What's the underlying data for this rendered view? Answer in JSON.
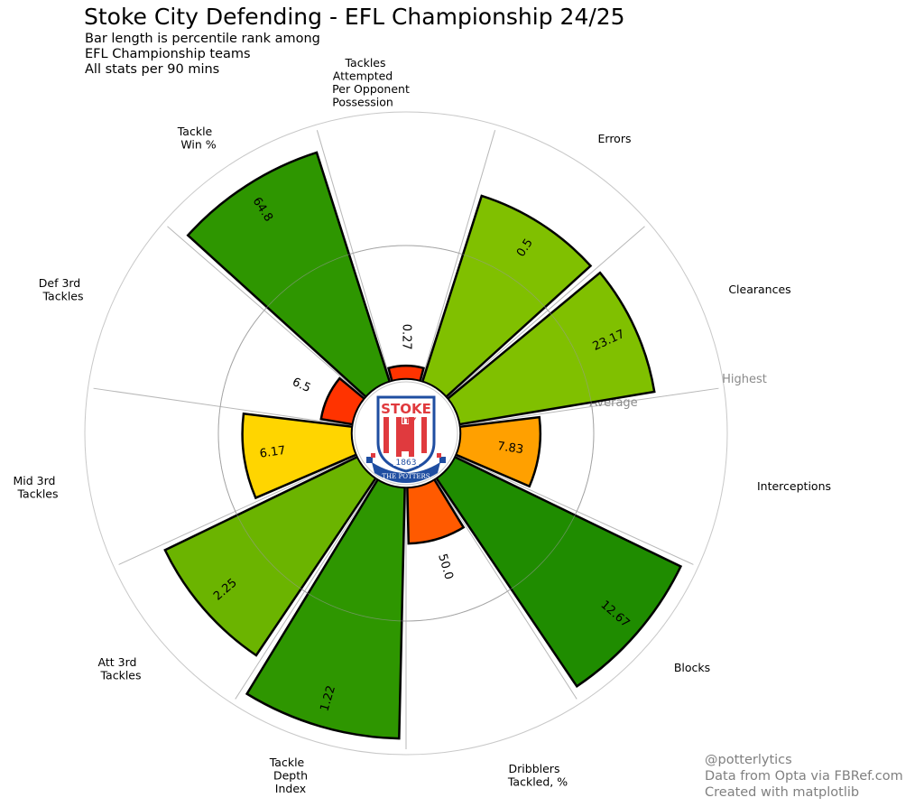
{
  "chart_data": {
    "type": "polar-bar",
    "title": "Stoke City Defending - EFL Championship 24/25",
    "subtitle": [
      "Bar length is percentile rank among",
      "EFL Championship teams",
      "All stats per 90 mins"
    ],
    "radial_axis": {
      "range": [
        0,
        100
      ],
      "unit": "percentile",
      "grid_labels": [
        {
          "value": 50,
          "label": "Average"
        },
        {
          "value": 100,
          "label": "Highest"
        }
      ]
    },
    "categories": [
      {
        "label": "Tackles\nAttempted\nPer Opponent\nPossession",
        "value_label": "0.27",
        "percentile": 5,
        "color": "#ff3300"
      },
      {
        "label": "Errors",
        "value_label": "0.5",
        "percentile": 73,
        "color": "#80c000"
      },
      {
        "label": "Clearances",
        "value_label": "23.17",
        "percentile": 74,
        "color": "#80c000"
      },
      {
        "label": "Interceptions",
        "value_label": "7.83",
        "percentile": 30,
        "color": "#ffa000"
      },
      {
        "label": "Blocks",
        "value_label": "12.67",
        "percentile": 94,
        "color": "#1f8c00"
      },
      {
        "label": "Dribblers\nTackled, %",
        "value_label": "50.0",
        "percentile": 21,
        "color": "#ff5a00"
      },
      {
        "label": "Tackle\nDepth\nIndex",
        "value_label": "1.22",
        "percentile": 94,
        "color": "#2e9600"
      },
      {
        "label": "Att 3rd\nTackles",
        "value_label": "2.25",
        "percentile": 80,
        "color": "#6bb400"
      },
      {
        "label": "Mid 3rd\nTackles",
        "value_label": "6.17",
        "percentile": 41,
        "color": "#ffd500"
      },
      {
        "label": "Def 3rd\nTackles",
        "value_label": "6.5",
        "percentile": 12,
        "color": "#ff3300"
      },
      {
        "label": "Tackle\nWin %",
        "value_label": "64.8",
        "percentile": 90,
        "color": "#2e9600"
      }
    ]
  },
  "logo": {
    "text_top": "STOKE",
    "text_mid": "CITY",
    "year": "1863",
    "banner": "THE POTTERS",
    "red": "#e03a3e",
    "blue": "#1f4ea1"
  },
  "credits": [
    "@potterlytics",
    "Data from Opta via FBRef.com",
    "Created with matplotlib"
  ]
}
